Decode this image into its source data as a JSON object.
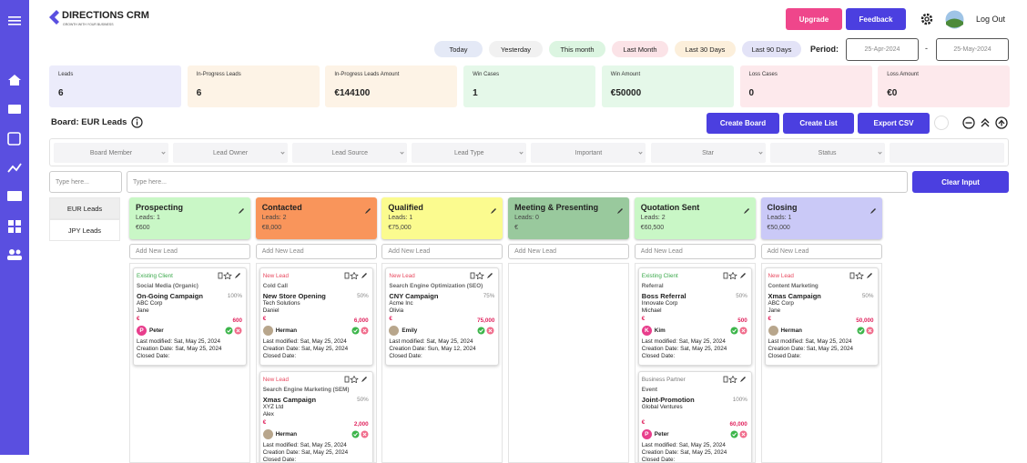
{
  "header": {
    "logo": "DIRECTIONS CRM",
    "tagline": "GROWTH WITH YOUR BUSINESS",
    "upgrade": "Upgrade",
    "feedback": "Feedback",
    "logout": "Log Out"
  },
  "period": {
    "ranges": [
      {
        "label": "Today",
        "color": "#e4e9f6"
      },
      {
        "label": "Yesterday",
        "color": "#f1f1f1"
      },
      {
        "label": "This month",
        "color": "#dcf5e1"
      },
      {
        "label": "Last Month",
        "color": "#fbe3e7"
      },
      {
        "label": "Last 30 Days",
        "color": "#fcefdb"
      },
      {
        "label": "Last 90 Days",
        "color": "#e3e3f7"
      }
    ],
    "label": "Period:",
    "start": "25-Apr-2024",
    "separator": "-",
    "end": "25-May-2024"
  },
  "stats": [
    {
      "label": "Leads",
      "value": "6",
      "color": "#ececfb"
    },
    {
      "label": "In-Progress Leads",
      "value": "6",
      "color": "#fdf3e6"
    },
    {
      "label": "In-Progress Leads Amount",
      "value": "€144100",
      "color": "#fdf3e6"
    },
    {
      "label": "Win Cases",
      "value": "1",
      "color": "#e5f8e9"
    },
    {
      "label": "Win Amount",
      "value": "€50000",
      "color": "#e5f8e9"
    },
    {
      "label": "Loss Cases",
      "value": "0",
      "color": "#fde9ec"
    },
    {
      "label": "Loss Amount",
      "value": "€0",
      "color": "#fde9ec"
    }
  ],
  "board": {
    "title": "Board: EUR Leads",
    "buttons": [
      "Create Board",
      "Create List",
      "Export CSV"
    ]
  },
  "dropdowns": [
    "Board Member",
    "Lead Owner",
    "Lead Source",
    "Lead Type",
    "Important",
    "Star",
    "Status"
  ],
  "search": {
    "placeholders": [
      "Type here...",
      "Type here..."
    ],
    "clear": "Clear Input"
  },
  "boards": [
    "EUR Leads",
    "JPY Leads"
  ],
  "columns": [
    {
      "title": "Prospecting",
      "count": "Leads: 1",
      "amount": "€600",
      "color": "#c9f7c6",
      "add": "Add New Lead",
      "cards": [
        {
          "status": "Existing Client",
          "status_color": "#3aa84a",
          "source": "Social Media (Organic)",
          "title": "On-Going Campaign",
          "probability": "100%",
          "company": "ABC Corp",
          "contact": "Jane",
          "currency": "€",
          "amount": "600",
          "owner": "Peter",
          "avatar": "P",
          "modified": "Last modified: Sat, May 25, 2024",
          "created": "Creation Date: Sat, May 25, 2024",
          "closed": "Closed Date:"
        }
      ]
    },
    {
      "title": "Contacted",
      "count": "Leads: 2",
      "amount": "€8,000",
      "color": "#f9955b",
      "add": "Add New Lead",
      "cards": [
        {
          "status": "New Lead",
          "status_color": "#e8485e",
          "source": "Cold Call",
          "title": "New Store Opening",
          "probability": "50%",
          "company": "Tech Solutions",
          "contact": "Daniel",
          "currency": "€",
          "amount": "6,000",
          "owner": "Herman",
          "modified": "Last modified: Sat, May 25, 2024",
          "created": "Creation Date: Sat, May 25, 2024",
          "closed": "Closed Date:"
        },
        {
          "status": "New Lead",
          "status_color": "#e8485e",
          "source": "Search Engine Marketing (SEM)",
          "title": "Xmas Campaign",
          "probability": "50%",
          "company": "XYZ Ltd",
          "contact": "Alex",
          "currency": "€",
          "amount": "2,000",
          "owner": "Herman",
          "modified": "Last modified: Sat, May 25, 2024",
          "created": "Creation Date: Sat, May 25, 2024",
          "closed": "Closed Date:"
        }
      ]
    },
    {
      "title": "Qualified",
      "count": "Leads: 1",
      "amount": "€75,000",
      "color": "#fbfb8f",
      "add": "Add New Lead",
      "cards": [
        {
          "status": "New Lead",
          "status_color": "#e8485e",
          "source": "Search Engine Optimization (SEO)",
          "title": "CNY Campaign",
          "probability": "75%",
          "company": "Acme Inc",
          "contact": "Olivia",
          "currency": "€",
          "amount": "75,000",
          "owner": "Emily",
          "modified": "Last modified: Sat, May 25, 2024",
          "created": "Creation Date: Sun, May 12, 2024",
          "closed": "Closed Date:"
        }
      ]
    },
    {
      "title": "Meeting & Presenting",
      "count": "Leads: 0",
      "amount": "€",
      "color": "#99c99d",
      "add": "Add New Lead",
      "cards": []
    },
    {
      "title": "Quotation Sent",
      "count": "Leads: 2",
      "amount": "€60,500",
      "color": "#c9f7c6",
      "add": "Add New Lead",
      "cards": [
        {
          "status": "Existing Client",
          "status_color": "#3aa84a",
          "source": "Referral",
          "title": "Boss Referral",
          "probability": "50%",
          "company": "Innovate Corp",
          "contact": "Michael",
          "currency": "€",
          "amount": "500",
          "owner": "Kim",
          "avatar": "K",
          "modified": "Last modified: Sat, May 25, 2024",
          "created": "Creation Date: Sat, May 25, 2024",
          "closed": "Closed Date:"
        },
        {
          "status": "Business Partner",
          "status_color": "#777777",
          "source": "Event",
          "title": "Joint-Promotion",
          "probability": "100%",
          "company": "Global Ventures",
          "currency": "€",
          "amount": "60,000",
          "owner": "Peter",
          "avatar": "P",
          "modified": "Last modified: Sat, May 25, 2024",
          "created": "Creation Date: Sat, May 25, 2024",
          "closed": "Closed Date:"
        }
      ]
    },
    {
      "title": "Closing",
      "count": "Leads: 1",
      "amount": "€50,000",
      "color": "#cac9f7",
      "add": "Add New Lead",
      "cards": [
        {
          "status": "New Lead",
          "status_color": "#e8485e",
          "source": "Content Marketing",
          "title": "Xmas Campaign",
          "probability": "50%",
          "company": "ABC Corp",
          "contact": "Jane",
          "currency": "€",
          "amount": "50,000",
          "owner": "Herman",
          "modified": "Last modified: Sat, May 25, 2024",
          "created": "Creation Date: Sat, May 25, 2024",
          "closed": "Closed Date:"
        }
      ]
    }
  ]
}
